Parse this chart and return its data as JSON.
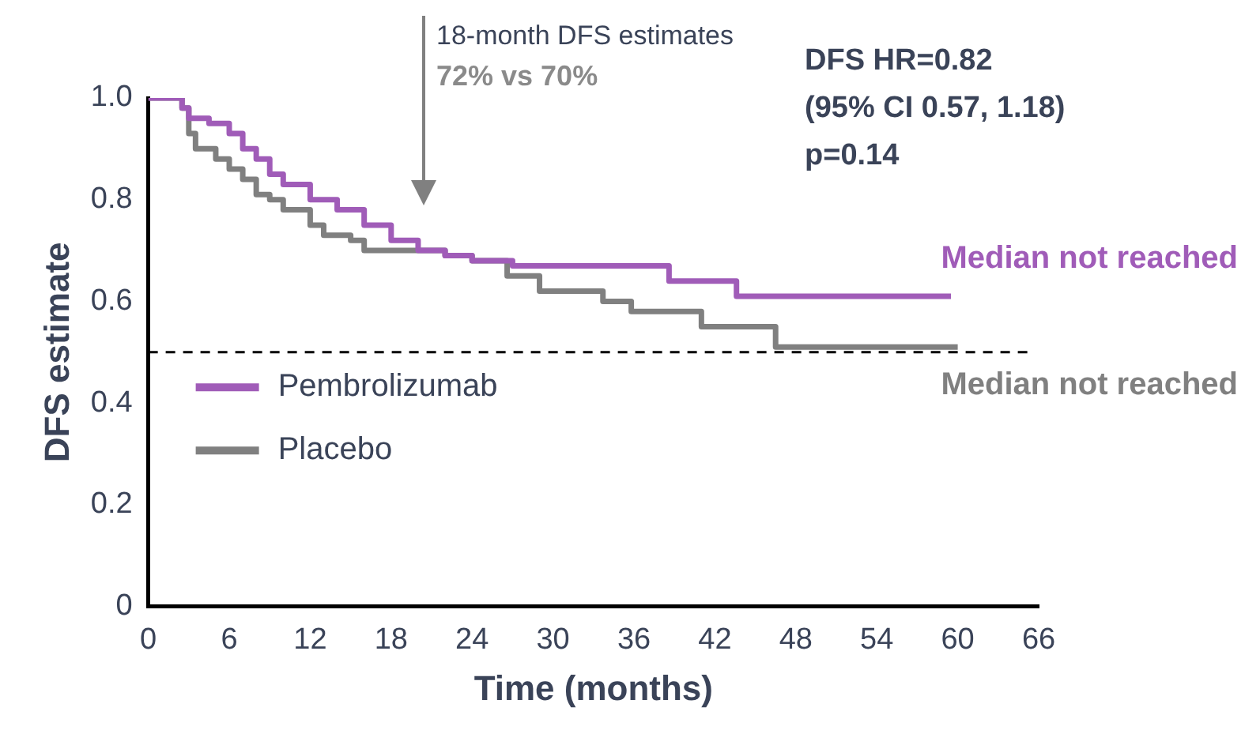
{
  "chart_data": {
    "type": "step",
    "xlabel": "Time (months)",
    "ylabel": "DFS estimate",
    "xlim": [
      0,
      66
    ],
    "xticks": [
      0,
      6,
      12,
      18,
      24,
      30,
      36,
      42,
      48,
      54,
      60,
      66
    ],
    "ylim": [
      0,
      1
    ],
    "yticks": [
      0,
      0.2,
      0.4,
      0.6,
      0.8,
      {
        "value": 1,
        "label": "1.0"
      }
    ],
    "grid": false,
    "legend": "left",
    "line_style": "solid",
    "marker": "none",
    "series": [
      {
        "name": "Pembrolizumab",
        "color": "#a05cb8",
        "x": [
          0,
          2,
          2.5,
          3,
          4.5,
          6,
          7,
          8,
          9,
          10,
          12,
          14,
          16,
          18,
          20,
          22,
          24,
          27,
          30,
          38.6,
          43.6,
          59.5
        ],
        "values": [
          1,
          1,
          0.98,
          0.96,
          0.95,
          0.93,
          0.9,
          0.88,
          0.85,
          0.83,
          0.8,
          0.78,
          0.75,
          0.72,
          0.7,
          0.69,
          0.68,
          0.67,
          0.67,
          0.64,
          0.61,
          0.61
        ]
      },
      {
        "name": "Placebo",
        "color": "#808080",
        "x": [
          0,
          2.5,
          3,
          3.5,
          5,
          6,
          7,
          8,
          9,
          10,
          12,
          13,
          15,
          16,
          20,
          22,
          24,
          26.6,
          29,
          33.7,
          35.8,
          41,
          46.5,
          60
        ],
        "values": [
          1,
          0.98,
          0.93,
          0.9,
          0.88,
          0.86,
          0.84,
          0.81,
          0.8,
          0.78,
          0.75,
          0.73,
          0.72,
          0.7,
          0.7,
          0.69,
          0.68,
          0.65,
          0.62,
          0.6,
          0.58,
          0.55,
          0.51,
          0.51
        ]
      }
    ],
    "ref_lines": [
      {
        "axis": "y",
        "value": 0.5,
        "line_style": "dashed",
        "color": "#000000"
      }
    ],
    "annotations": [
      "18-month DFS estimates",
      "72% vs 70%",
      "DFS HR=0.82",
      "(95% CI 0.57, 1.18)",
      "p=0.14",
      "Median not reached",
      "Median not reached"
    ]
  }
}
